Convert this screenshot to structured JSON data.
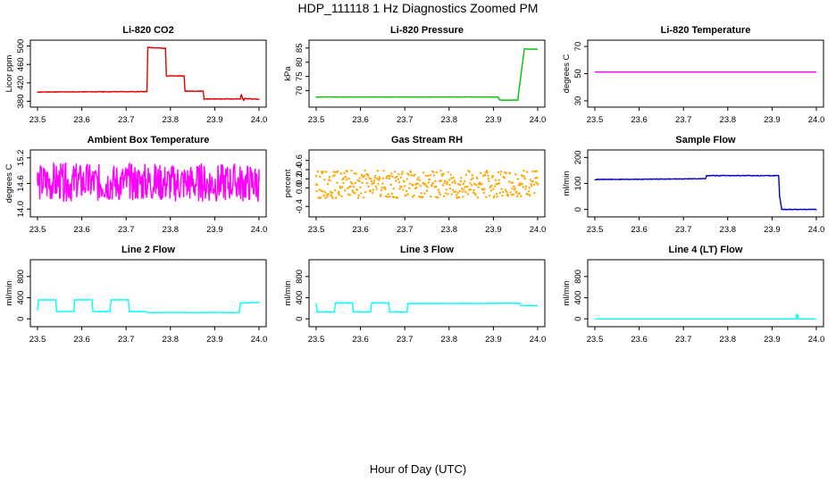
{
  "figure": {
    "title": "HDP_111118  1 Hz Diagnostics Zoomed PM",
    "xlabel": "Hour of Day (UTC)"
  },
  "chart_data": [
    {
      "type": "line",
      "title": "Li-820 CO2",
      "xlabel": "",
      "ylabel": "Licor ppm",
      "color": "#e00000",
      "xlim": [
        23.5,
        24.0
      ],
      "ylim": [
        375,
        505
      ],
      "xticks": [
        "23.5",
        "23.6",
        "23.7",
        "23.8",
        "23.9",
        "24.0"
      ],
      "yticks": [
        "380",
        "420",
        "460",
        "500"
      ],
      "series": [
        {
          "name": "",
          "noise": 0.6,
          "seed": 11,
          "x": [
            23.5,
            23.747,
            23.749,
            23.789,
            23.791,
            23.831,
            23.833,
            23.874,
            23.876,
            23.958,
            23.96,
            23.965,
            23.967,
            24.0
          ],
          "y": [
            400,
            401,
            497,
            495,
            435,
            435,
            402,
            402,
            385,
            385,
            395,
            381,
            386,
            384
          ]
        }
      ]
    },
    {
      "type": "line",
      "title": "Li-820 Pressure",
      "xlabel": "",
      "ylabel": "kPa",
      "color": "#00c000",
      "xlim": [
        23.5,
        24.0
      ],
      "ylim": [
        65.5,
        86.5
      ],
      "xticks": [
        "23.5",
        "23.6",
        "23.7",
        "23.8",
        "23.9",
        "24.0"
      ],
      "yticks": [
        "70",
        "75",
        "80",
        "85"
      ],
      "series": [
        {
          "name": "",
          "noise": 0.05,
          "seed": 12,
          "x": [
            23.5,
            23.91,
            23.915,
            23.955,
            23.97,
            23.975,
            24.0
          ],
          "y": [
            67.8,
            67.8,
            66.7,
            66.7,
            84.8,
            84.6,
            84.6
          ]
        }
      ]
    },
    {
      "type": "line",
      "title": "Li-820 Temperature",
      "xlabel": "",
      "ylabel": "degrees C",
      "color": "#ff00ff",
      "xlim": [
        23.5,
        24.0
      ],
      "ylim": [
        28,
        72
      ],
      "xticks": [
        "23.5",
        "23.6",
        "23.7",
        "23.8",
        "23.9",
        "24.0"
      ],
      "yticks": [
        "30",
        "50",
        "70"
      ],
      "series": [
        {
          "name": "",
          "noise": 0,
          "seed": 13,
          "x": [
            23.5,
            24.0
          ],
          "y": [
            51.2,
            51.2
          ]
        }
      ]
    },
    {
      "type": "line",
      "title": "Ambient Box Temperature",
      "xlabel": "",
      "ylabel": "degrees C",
      "color": "#ff00ff",
      "xlim": [
        23.5,
        24.0
      ],
      "ylim": [
        13.9,
        15.3
      ],
      "xticks": [
        "23.5",
        "23.6",
        "23.7",
        "23.8",
        "23.9",
        "24.0"
      ],
      "yticks": [
        "14.0",
        "14.6",
        "15.2"
      ],
      "series": [
        {
          "name": "",
          "noise": 0.45,
          "seed": 14,
          "base": 14.62,
          "x": [
            23.5,
            24.0
          ],
          "y": [
            14.62,
            14.62
          ]
        }
      ]
    },
    {
      "type": "scatter",
      "title": "Gas Stream RH",
      "xlabel": "",
      "ylabel": "percent",
      "color": "#ffa500",
      "xlim": [
        23.5,
        24.0
      ],
      "ylim": [
        -0.55,
        0.75
      ],
      "xticks": [
        "23.5",
        "23.6",
        "23.7",
        "23.8",
        "23.9",
        "24.0"
      ],
      "yticks": [
        "-0.4",
        "0.0",
        "0.2",
        "0.4",
        "0.6"
      ],
      "series": [
        {
          "name": "",
          "noise": 0.3,
          "seed": 15,
          "base": 0.08,
          "x": [
            23.5,
            24.0
          ],
          "y": [
            0.08,
            0.08
          ]
        }
      ]
    },
    {
      "type": "line",
      "title": "Sample Flow",
      "xlabel": "",
      "ylabel": "ml/min",
      "color": "#0000c0",
      "xlim": [
        23.5,
        24.0
      ],
      "ylim": [
        -15,
        215
      ],
      "xticks": [
        "23.5",
        "23.6",
        "23.7",
        "23.8",
        "23.9",
        "24.0"
      ],
      "yticks": [
        "0",
        "100",
        "200"
      ],
      "series": [
        {
          "name": "",
          "noise": 1.2,
          "seed": 16,
          "x": [
            23.5,
            23.75,
            23.752,
            23.915,
            23.917,
            23.922,
            24.0
          ],
          "y": [
            115,
            118,
            130,
            130,
            50,
            0,
            0
          ]
        }
      ]
    },
    {
      "type": "line",
      "title": "Line 2 Flow",
      "xlabel": "",
      "ylabel": "ml/min",
      "color": "#00ffff",
      "xlim": [
        23.5,
        24.0
      ],
      "ylim": [
        -80,
        1050
      ],
      "xticks": [
        "23.5",
        "23.6",
        "23.7",
        "23.8",
        "23.9",
        "24.0"
      ],
      "yticks": [
        "0",
        "400",
        "800"
      ],
      "series": [
        {
          "name": "",
          "noise": 3,
          "seed": 17,
          "x": [
            23.5,
            23.5,
            23.502,
            23.541,
            23.543,
            23.582,
            23.584,
            23.623,
            23.625,
            23.664,
            23.666,
            23.705,
            23.707,
            23.745,
            23.75,
            23.955,
            23.958,
            24.0
          ],
          "y": [
            160,
            160,
            360,
            360,
            140,
            140,
            360,
            360,
            140,
            140,
            360,
            360,
            140,
            140,
            120,
            120,
            300,
            310
          ]
        }
      ]
    },
    {
      "type": "line",
      "title": "Line 3 Flow",
      "xlabel": "",
      "ylabel": "ml/min",
      "color": "#00ffff",
      "xlim": [
        23.5,
        24.0
      ],
      "ylim": [
        -80,
        1050
      ],
      "xticks": [
        "23.5",
        "23.6",
        "23.7",
        "23.8",
        "23.9",
        "24.0"
      ],
      "yticks": [
        "0",
        "400",
        "800"
      ],
      "series": [
        {
          "name": "",
          "noise": 4,
          "seed": 18,
          "x": [
            23.5,
            23.5,
            23.502,
            23.541,
            23.543,
            23.582,
            23.584,
            23.623,
            23.625,
            23.664,
            23.666,
            23.705,
            23.707,
            23.96,
            23.962,
            24.0
          ],
          "y": [
            300,
            300,
            130,
            130,
            300,
            300,
            130,
            130,
            300,
            300,
            130,
            130,
            290,
            295,
            250,
            250
          ]
        }
      ]
    },
    {
      "type": "line",
      "title": "Line 4 (LT) Flow",
      "xlabel": "",
      "ylabel": "ml/min",
      "color": "#00ffff",
      "xlim": [
        23.5,
        24.0
      ],
      "ylim": [
        -80,
        1050
      ],
      "xticks": [
        "23.5",
        "23.6",
        "23.7",
        "23.8",
        "23.9",
        "24.0"
      ],
      "yticks": [
        "0",
        "400",
        "800"
      ],
      "series": [
        {
          "name": "",
          "noise": 0,
          "seed": 19,
          "x": [
            23.5,
            23.955,
            23.956,
            23.957,
            23.958,
            23.959,
            23.962,
            24.0
          ],
          "y": [
            0,
            0,
            100,
            20,
            80,
            0,
            0,
            0
          ]
        }
      ]
    }
  ]
}
